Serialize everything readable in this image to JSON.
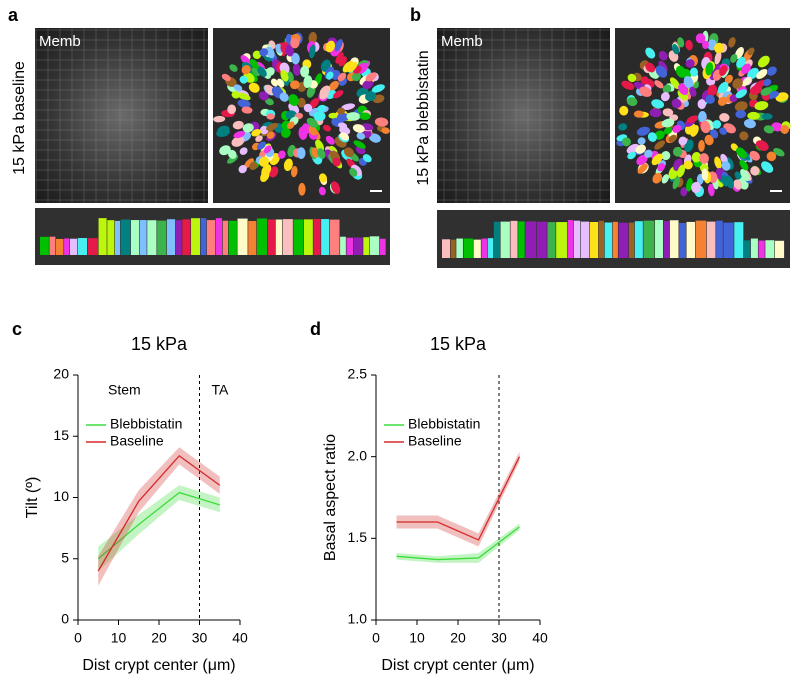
{
  "panels": [
    {
      "letter": "a",
      "image_label": "Memb",
      "side_label": "15 kPa baseline"
    },
    {
      "letter": "b",
      "image_label": "Memb",
      "side_label": "15 kPa blebbistatin"
    }
  ],
  "chart_data": [
    {
      "panel": "c",
      "type": "line",
      "title": "15 kPa",
      "xlabel": "Dist crypt center (μm)",
      "ylabel": "Tilt (º)",
      "x": [
        5,
        15,
        25,
        35
      ],
      "xlim": [
        0,
        40
      ],
      "xticks": [
        0,
        10,
        20,
        30,
        40
      ],
      "ylim": [
        0,
        20
      ],
      "yticks": [
        0,
        5,
        10,
        15,
        20
      ],
      "vline": 30,
      "annotations": [
        "Stem",
        "TA"
      ],
      "legend": "upper left",
      "series": [
        {
          "name": "Blebbistatin",
          "color": "#3ddc3d",
          "values": [
            5.0,
            7.8,
            10.4,
            9.4
          ],
          "errors": [
            1.0,
            0.8,
            0.6,
            0.6
          ]
        },
        {
          "name": "Baseline",
          "color": "#d42a2a",
          "values": [
            4.0,
            9.7,
            13.4,
            11.0
          ],
          "errors": [
            1.2,
            0.9,
            0.7,
            0.7
          ]
        }
      ]
    },
    {
      "panel": "d",
      "type": "line",
      "title": "15 kPa",
      "xlabel": "Dist crypt center (μm)",
      "ylabel": "Basal aspect ratio",
      "x": [
        5,
        15,
        25,
        35
      ],
      "xlim": [
        0,
        40
      ],
      "xticks": [
        0,
        10,
        20,
        30,
        40
      ],
      "ylim": [
        1,
        2.5
      ],
      "yticks": [
        {
          "value": 1,
          "label": "1.0"
        },
        1.5,
        {
          "value": 2,
          "label": "2.0"
        },
        2.5
      ],
      "vline": 30,
      "legend": "upper left",
      "series": [
        {
          "name": "Blebbistatin",
          "color": "#3ddc3d",
          "values": [
            1.39,
            1.37,
            1.38,
            1.57
          ],
          "errors": [
            0.02,
            0.02,
            0.03,
            0.02
          ]
        },
        {
          "name": "Baseline",
          "color": "#d42a2a",
          "values": [
            1.6,
            1.6,
            1.49,
            2.0
          ],
          "errors": [
            0.04,
            0.04,
            0.04,
            0.03
          ]
        }
      ]
    }
  ]
}
